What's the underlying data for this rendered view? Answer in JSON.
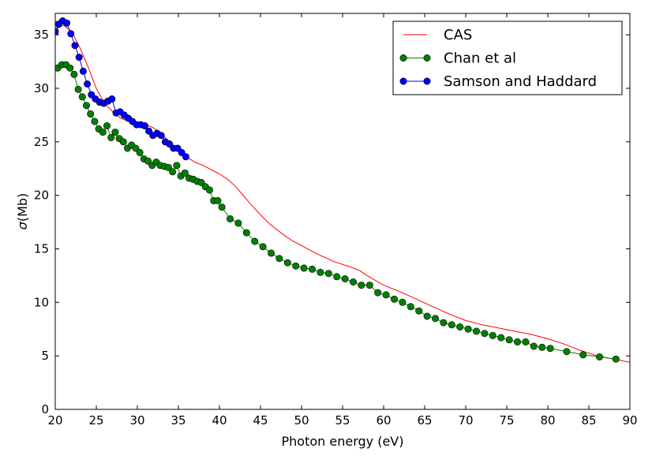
{
  "chart_data": {
    "type": "line",
    "title": "",
    "xlabel": "Photon energy (eV)",
    "ylabel_symbol": "σ",
    "ylabel_unit": "(Mb)",
    "xlim": [
      20,
      90
    ],
    "ylim": [
      0,
      37
    ],
    "xticks": [
      20,
      25,
      30,
      35,
      40,
      45,
      50,
      55,
      60,
      65,
      70,
      75,
      80,
      85,
      90
    ],
    "yticks": [
      0,
      5,
      10,
      15,
      20,
      25,
      30,
      35
    ],
    "legend_position": "top-right",
    "series": [
      {
        "name": "CAS",
        "color": "#ff0000",
        "marker": "none",
        "x": [
          20,
          21,
          22,
          23,
          24,
          25,
          26,
          27,
          28,
          29,
          30,
          31,
          32,
          33,
          34,
          35,
          36,
          37,
          38,
          39,
          40,
          41,
          42,
          43,
          44,
          45,
          46,
          47,
          48,
          49,
          50,
          52,
          54,
          56,
          57,
          58,
          60,
          62,
          64,
          66,
          68,
          70,
          72,
          74,
          76,
          78,
          80,
          82,
          84,
          86,
          88,
          90
        ],
        "y": [
          35.5,
          35.9,
          35.3,
          33.8,
          32.0,
          30.0,
          28.6,
          27.8,
          27.2,
          26.9,
          26.7,
          26.6,
          26.3,
          25.7,
          24.9,
          24.2,
          23.6,
          23.1,
          22.8,
          22.4,
          22.0,
          21.5,
          20.8,
          19.9,
          19.0,
          18.2,
          17.4,
          16.8,
          16.2,
          15.7,
          15.3,
          14.5,
          13.8,
          13.3,
          13.0,
          12.5,
          11.6,
          11.0,
          10.3,
          9.6,
          8.9,
          8.3,
          7.9,
          7.6,
          7.3,
          7.0,
          6.6,
          6.1,
          5.5,
          5.0,
          4.7,
          4.4
        ]
      },
      {
        "name": "Chan et al",
        "color": "#008000",
        "marker": "circle",
        "x": [
          20.3,
          20.8,
          21.3,
          21.8,
          22.3,
          22.8,
          23.3,
          23.8,
          24.3,
          24.8,
          25.3,
          25.8,
          26.3,
          26.8,
          27.3,
          27.8,
          28.3,
          28.8,
          29.3,
          29.8,
          30.3,
          30.8,
          31.3,
          31.8,
          32.3,
          32.8,
          33.3,
          33.8,
          34.3,
          34.8,
          35.3,
          35.8,
          36.3,
          36.8,
          37.3,
          37.8,
          38.3,
          38.8,
          39.3,
          39.8,
          40.3,
          41.3,
          42.3,
          43.3,
          44.3,
          45.3,
          46.3,
          47.3,
          48.3,
          49.3,
          50.3,
          51.3,
          52.3,
          53.3,
          54.3,
          55.3,
          56.3,
          57.3,
          58.3,
          59.3,
          60.3,
          61.3,
          62.3,
          63.3,
          64.3,
          65.3,
          66.3,
          67.3,
          68.3,
          69.3,
          70.3,
          71.3,
          72.3,
          73.3,
          74.3,
          75.3,
          76.3,
          77.3,
          78.3,
          79.3,
          80.3,
          82.3,
          84.3,
          86.3,
          88.3
        ],
        "y": [
          31.9,
          32.2,
          32.2,
          31.9,
          31.3,
          29.9,
          29.2,
          28.4,
          27.6,
          26.9,
          26.2,
          25.9,
          26.5,
          25.4,
          25.9,
          25.3,
          25.0,
          24.4,
          24.7,
          24.4,
          24.0,
          23.4,
          23.2,
          22.8,
          23.1,
          22.8,
          22.7,
          22.6,
          22.2,
          22.8,
          21.8,
          22.1,
          21.6,
          21.5,
          21.3,
          21.2,
          20.8,
          20.5,
          19.5,
          19.5,
          18.9,
          17.8,
          17.4,
          16.5,
          15.7,
          15.2,
          14.6,
          14.1,
          13.7,
          13.4,
          13.2,
          13.1,
          12.8,
          12.7,
          12.4,
          12.2,
          11.9,
          11.6,
          11.6,
          10.9,
          10.7,
          10.3,
          10.0,
          9.6,
          9.2,
          8.7,
          8.5,
          8.1,
          7.9,
          7.7,
          7.5,
          7.3,
          7.1,
          6.9,
          6.7,
          6.5,
          6.3,
          6.3,
          5.9,
          5.8,
          5.7,
          5.4,
          5.1,
          4.9,
          4.7
        ]
      },
      {
        "name": "Samson and Haddard",
        "color": "#0000ff",
        "marker": "circle",
        "x": [
          20.0,
          20.4,
          20.9,
          21.4,
          21.9,
          22.4,
          22.9,
          23.4,
          23.9,
          24.4,
          24.9,
          25.4,
          25.9,
          26.4,
          26.9,
          27.4,
          27.9,
          28.4,
          28.9,
          29.4,
          29.9,
          30.4,
          30.9,
          31.4,
          31.9,
          32.4,
          32.9,
          33.4,
          33.9,
          34.4,
          34.9,
          35.4,
          35.9
        ],
        "y": [
          35.3,
          36.0,
          36.3,
          36.1,
          35.1,
          34.0,
          32.9,
          31.6,
          30.4,
          29.4,
          29.0,
          28.7,
          28.6,
          28.8,
          29.0,
          27.7,
          27.8,
          27.5,
          27.2,
          26.9,
          26.6,
          26.6,
          26.5,
          26.0,
          25.6,
          25.8,
          25.6,
          25.0,
          24.8,
          24.4,
          24.4,
          24.0,
          23.6
        ]
      }
    ]
  }
}
